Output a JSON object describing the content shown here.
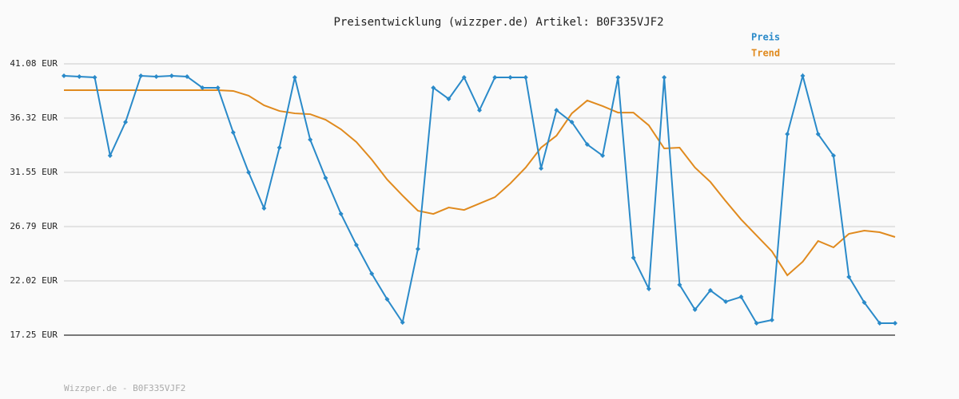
{
  "chart_data": {
    "type": "line",
    "title": "Preisentwicklung (wizzper.de) Artikel: B0F335VJF2",
    "footer": "Wizzper.de - B0F335VJF2",
    "categories": [
      null,
      null,
      null,
      null,
      null,
      null,
      null,
      null,
      null,
      null,
      null,
      null,
      null,
      null,
      null,
      null,
      null,
      null,
      null,
      null,
      null,
      null,
      null,
      null,
      null,
      null,
      null,
      null,
      null,
      null,
      null,
      null,
      null,
      null,
      null,
      null,
      null,
      null,
      null,
      null,
      null,
      null,
      null,
      null,
      null,
      null,
      null,
      null,
      null,
      null,
      null,
      null,
      null,
      null,
      null
    ],
    "series": [
      {
        "name": "Preis",
        "color": "#2a8ac9",
        "markers": true,
        "values": [
          40.03,
          39.96,
          39.89,
          33.02,
          35.96,
          40.03,
          39.96,
          40.03,
          39.96,
          38.98,
          38.98,
          35.05,
          31.55,
          28.39,
          33.72,
          39.89,
          34.42,
          31.06,
          27.9,
          25.17,
          22.65,
          20.4,
          18.37,
          24.82,
          38.98,
          38.0,
          39.89,
          37.01,
          39.89,
          39.89,
          39.89,
          31.9,
          37.01,
          35.96,
          34.0,
          33.02,
          39.89,
          24.05,
          21.32,
          39.89,
          21.67,
          19.49,
          21.18,
          20.19,
          20.61,
          18.3,
          18.58,
          34.91,
          40.03,
          34.91,
          33.02,
          22.37,
          20.12,
          18.3,
          18.3
        ]
      },
      {
        "name": "Trend",
        "color": "#e08a1e",
        "markers": false,
        "values": [
          38.77,
          38.77,
          38.77,
          38.77,
          38.77,
          38.77,
          38.77,
          38.77,
          38.77,
          38.77,
          38.77,
          38.7,
          38.28,
          37.44,
          36.94,
          36.73,
          36.66,
          36.17,
          35.33,
          34.21,
          32.67,
          30.92,
          29.51,
          28.18,
          27.9,
          28.46,
          28.25,
          28.81,
          29.37,
          30.57,
          31.97,
          33.72,
          34.77,
          36.73,
          37.86,
          37.37,
          36.8,
          36.8,
          35.68,
          33.65,
          33.72,
          31.97,
          30.71,
          29.02,
          27.41,
          26.01,
          24.61,
          22.51,
          23.7,
          25.52,
          24.96,
          26.15,
          26.43,
          26.29,
          25.87
        ]
      }
    ],
    "ylim": [
      17.25,
      41.08
    ],
    "yticks": [
      {
        "value": 17.25,
        "label": "17.25 EUR"
      },
      {
        "value": 22.02,
        "label": "22.02 EUR"
      },
      {
        "value": 26.79,
        "label": "26.79 EUR"
      },
      {
        "value": 31.55,
        "label": "31.55 EUR"
      },
      {
        "value": 36.32,
        "label": "36.32 EUR"
      },
      {
        "value": 41.08,
        "label": "41.08 EUR"
      }
    ],
    "grid": true,
    "legend": "top-right"
  }
}
